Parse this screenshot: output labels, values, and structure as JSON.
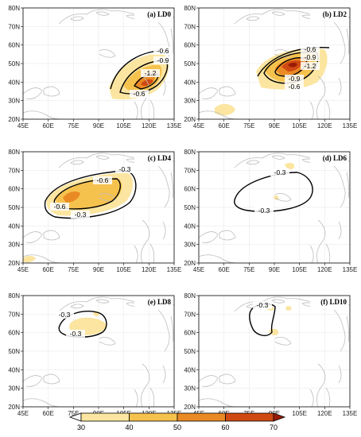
{
  "x_ticks": [
    "45E",
    "60E",
    "75E",
    "90E",
    "105E",
    "120E",
    "135E"
  ],
  "y_ticks": [
    "20N",
    "30N",
    "40N",
    "50N",
    "60N",
    "70N",
    "80N"
  ],
  "colors": {
    "c30_40": "#fbe5a0",
    "c40_50": "#f6c24e",
    "c50_60": "#ea8a24",
    "c60_70": "#cf4a12",
    "c70p": "#9a1b06",
    "coast": "#bdbdbd",
    "grid": "#dddddd"
  },
  "panels": [
    {
      "title": "(a) LD0",
      "labels": [
        "-0.6",
        "-0.9",
        "-1.2",
        "-0.6"
      ]
    },
    {
      "title": "(b) LD2",
      "labels": [
        "-0.6",
        "-0.9",
        "-1.2",
        "-0.9",
        "-0.6"
      ]
    },
    {
      "title": "(c) LD4",
      "labels": [
        "-0.3",
        "-0.6",
        "-0.6",
        "-0.3"
      ]
    },
    {
      "title": "(d) LD6",
      "labels": [
        "-0.3",
        "-0.3"
      ]
    },
    {
      "title": "(e) LD8",
      "labels": [
        "-0.3",
        "-0.3"
      ]
    },
    {
      "title": "(f) LD10",
      "labels": [
        "-0.3"
      ]
    }
  ],
  "colorbar": {
    "ticks": [
      "30",
      "40",
      "50",
      "60",
      "70"
    ]
  }
}
